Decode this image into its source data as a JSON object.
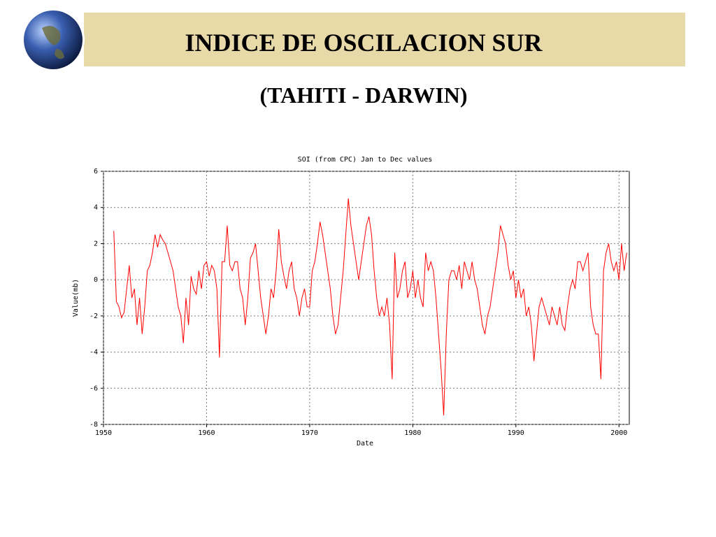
{
  "slide_title": "INDICE DE OSCILACION SUR",
  "slide_subtitle": "(TAHITI - DARWIN)",
  "chart_data": {
    "type": "line",
    "title": "SOI (from CPC) Jan to Dec values",
    "x_label": "Date",
    "y_label": "Value(mb)",
    "color": "#ff0000",
    "grid": true,
    "xlim": [
      1950,
      2001
    ],
    "ylim": [
      -8,
      6
    ],
    "xticks": [
      1950,
      1960,
      1970,
      1980,
      1990,
      2000
    ],
    "yticks": [
      -8,
      -6,
      -4,
      -2,
      0,
      2,
      4,
      6
    ],
    "x": [
      1951,
      1951.25,
      1951.5,
      1951.75,
      1952,
      1952.25,
      1952.5,
      1952.75,
      1953,
      1953.25,
      1953.5,
      1953.75,
      1954,
      1954.25,
      1954.5,
      1954.75,
      1955,
      1955.25,
      1955.5,
      1955.75,
      1956,
      1956.25,
      1956.5,
      1956.75,
      1957,
      1957.25,
      1957.5,
      1957.75,
      1958,
      1958.25,
      1958.5,
      1958.75,
      1959,
      1959.25,
      1959.5,
      1959.75,
      1960,
      1960.25,
      1960.5,
      1960.75,
      1961,
      1961.25,
      1961.5,
      1961.75,
      1962,
      1962.25,
      1962.5,
      1962.75,
      1963,
      1963.25,
      1963.5,
      1963.75,
      1964,
      1964.25,
      1964.5,
      1964.75,
      1965,
      1965.25,
      1965.5,
      1965.75,
      1966,
      1966.25,
      1966.5,
      1966.75,
      1967,
      1967.25,
      1967.5,
      1967.75,
      1968,
      1968.25,
      1968.5,
      1968.75,
      1969,
      1969.25,
      1969.5,
      1969.75,
      1970,
      1970.25,
      1970.5,
      1970.75,
      1971,
      1971.25,
      1971.5,
      1971.75,
      1972,
      1972.25,
      1972.5,
      1972.75,
      1973,
      1973.25,
      1973.5,
      1973.75,
      1974,
      1974.25,
      1974.5,
      1974.75,
      1975,
      1975.25,
      1975.5,
      1975.75,
      1976,
      1976.25,
      1976.5,
      1976.75,
      1977,
      1977.25,
      1977.5,
      1977.75,
      1978,
      1978.25,
      1978.5,
      1978.75,
      1979,
      1979.25,
      1979.5,
      1979.75,
      1980,
      1980.25,
      1980.5,
      1980.75,
      1981,
      1981.25,
      1981.5,
      1981.75,
      1982,
      1982.25,
      1982.5,
      1982.75,
      1983,
      1983.25,
      1983.5,
      1983.75,
      1984,
      1984.25,
      1984.5,
      1984.75,
      1985,
      1985.25,
      1985.5,
      1985.75,
      1986,
      1986.25,
      1986.5,
      1986.75,
      1987,
      1987.25,
      1987.5,
      1987.75,
      1988,
      1988.25,
      1988.5,
      1988.75,
      1989,
      1989.25,
      1989.5,
      1989.75,
      1990,
      1990.25,
      1990.5,
      1990.75,
      1991,
      1991.25,
      1991.5,
      1991.75,
      1992,
      1992.25,
      1992.5,
      1992.75,
      1993,
      1993.25,
      1993.5,
      1993.75,
      1994,
      1994.25,
      1994.5,
      1994.75,
      1995,
      1995.25,
      1995.5,
      1995.75,
      1996,
      1996.25,
      1996.5,
      1996.75,
      1997,
      1997.25,
      1997.5,
      1997.75,
      1998,
      1998.25,
      1998.5,
      1998.75,
      1999,
      1999.25,
      1999.5,
      1999.75,
      2000,
      2000.25,
      2000.5,
      2000.75
    ],
    "values": [
      2.7,
      -1.2,
      -1.5,
      -2.1,
      -1.8,
      -0.5,
      0.8,
      -1.0,
      -0.5,
      -2.5,
      -1.0,
      -3.0,
      -1.5,
      0.5,
      0.8,
      1.5,
      2.5,
      1.8,
      2.5,
      2.2,
      2.0,
      1.5,
      1.0,
      0.5,
      -0.5,
      -1.5,
      -2.0,
      -3.5,
      -1.0,
      -2.5,
      0.2,
      -0.5,
      -0.8,
      0.5,
      -0.5,
      0.8,
      1.0,
      0.2,
      0.8,
      0.5,
      -0.5,
      -4.3,
      1.0,
      1.0,
      3.0,
      0.8,
      0.5,
      1.0,
      1.0,
      -0.5,
      -1.0,
      -2.5,
      -1.0,
      1.2,
      1.5,
      2.0,
      0.5,
      -1.0,
      -2.0,
      -3.0,
      -2.0,
      -0.5,
      -1.0,
      0.5,
      2.8,
      1.0,
      0.2,
      -0.5,
      0.5,
      1.0,
      -0.5,
      -1.0,
      -2.0,
      -1.0,
      -0.5,
      -1.5,
      -1.5,
      0.5,
      1.0,
      2.0,
      3.2,
      2.5,
      1.5,
      0.5,
      -0.5,
      -2.0,
      -3.0,
      -2.5,
      -1.0,
      0.5,
      2.5,
      4.5,
      3.0,
      2.0,
      1.0,
      0.0,
      1.0,
      2.0,
      3.0,
      3.5,
      2.5,
      0.5,
      -1.0,
      -2.0,
      -1.5,
      -2.0,
      -1.0,
      -2.5,
      -5.5,
      1.5,
      -1.0,
      -0.5,
      0.5,
      1.0,
      -1.0,
      -0.5,
      0.5,
      -1.0,
      0.0,
      -1.0,
      -1.5,
      1.5,
      0.5,
      1.0,
      0.5,
      -1.0,
      -3.0,
      -5.0,
      -7.5,
      -3.0,
      0.0,
      0.5,
      0.5,
      0.0,
      0.8,
      -0.5,
      1.0,
      0.5,
      0.0,
      1.0,
      0.0,
      -0.5,
      -1.5,
      -2.5,
      -3.0,
      -2.0,
      -1.5,
      -0.5,
      0.5,
      1.5,
      3.0,
      2.5,
      2.0,
      0.8,
      0.0,
      0.5,
      -1.0,
      0.0,
      -1.0,
      -0.5,
      -2.0,
      -1.5,
      -2.5,
      -4.5,
      -3.0,
      -1.5,
      -1.0,
      -1.5,
      -2.0,
      -2.5,
      -1.5,
      -2.0,
      -2.5,
      -1.5,
      -2.5,
      -2.8,
      -1.5,
      -0.5,
      0.0,
      -0.5,
      1.0,
      1.0,
      0.5,
      1.0,
      1.5,
      -1.5,
      -2.5,
      -3.0,
      -3.0,
      -5.5,
      0.5,
      1.5,
      2.0,
      1.0,
      0.5,
      1.0,
      0.0,
      2.0,
      0.5,
      1.5
    ]
  }
}
